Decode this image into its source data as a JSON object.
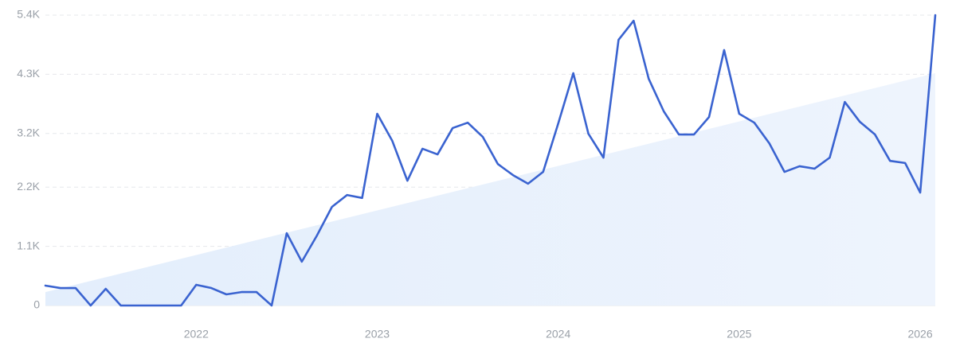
{
  "chart_data": {
    "type": "line",
    "categories": [
      null,
      null,
      null,
      null,
      null,
      null,
      null,
      null,
      null,
      null,
      "2022",
      null,
      null,
      null,
      null,
      null,
      null,
      null,
      null,
      null,
      null,
      null,
      "2023",
      null,
      null,
      null,
      null,
      null,
      null,
      null,
      null,
      null,
      null,
      null,
      "2024",
      null,
      null,
      null,
      null,
      null,
      null,
      null,
      null,
      null,
      null,
      null,
      "2025",
      null,
      null,
      null,
      null,
      null,
      null,
      null,
      null,
      null,
      null,
      null,
      "2026",
      null
    ],
    "series": [
      {
        "color": "#3a63d0",
        "values": [
          370,
          325,
          325,
          0,
          310,
          0,
          0,
          0,
          0,
          0,
          385,
          325,
          207,
          250,
          250,
          0,
          1345,
          815,
          1300,
          1835,
          2055,
          2000,
          3565,
          3060,
          2320,
          2915,
          2810,
          3300,
          3400,
          3135,
          2630,
          2425,
          2265,
          2485,
          3385,
          4320,
          3195,
          2750,
          4940,
          5295,
          4215,
          3610,
          3180,
          3180,
          3505,
          4750,
          3565,
          3400,
          3015,
          2485,
          2590,
          2545,
          2750,
          3785,
          3415,
          3180,
          2690,
          2650,
          2100,
          5400
        ]
      }
    ],
    "trend": {
      "color": "#dde9fb",
      "values": [
        250,
        4320
      ]
    },
    "ylim": [
      0,
      5400
    ],
    "yticks": [
      0,
      {
        "value": 1100,
        "label": "1.1K"
      },
      {
        "value": 2200,
        "label": "2.2K"
      },
      {
        "value": 3200,
        "label": "3.2K"
      },
      {
        "value": 4300,
        "label": "4.3K"
      },
      {
        "value": 5400,
        "label": "5.4K"
      }
    ],
    "grid": true
  }
}
